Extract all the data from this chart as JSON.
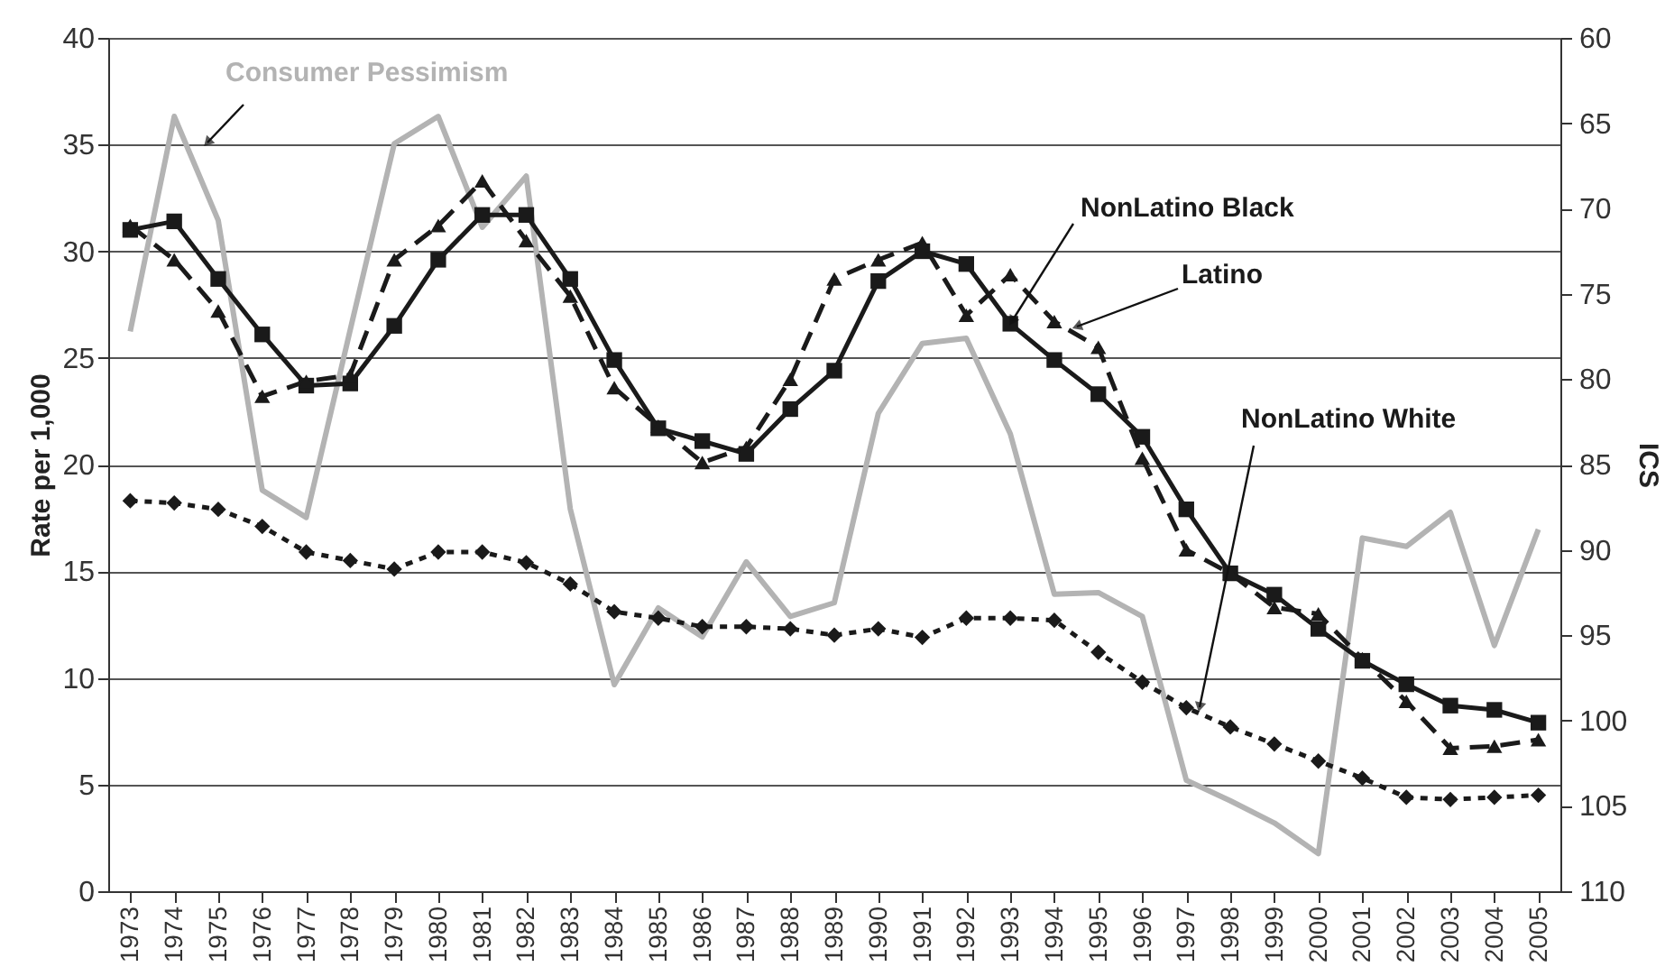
{
  "chart_data": {
    "type": "line",
    "ylabel": "Rate per 1,000",
    "y2label": "ICS",
    "categories": [
      "1973",
      "1974",
      "1975",
      "1976",
      "1977",
      "1978",
      "1979",
      "1980",
      "1981",
      "1982",
      "1983",
      "1984",
      "1985",
      "1986",
      "1987",
      "1988",
      "1989",
      "1990",
      "1991",
      "1992",
      "1993",
      "1994",
      "1995",
      "1996",
      "1997",
      "1998",
      "1999",
      "2000",
      "2001",
      "2002",
      "2003",
      "2004",
      "2005"
    ],
    "series": [
      {
        "name": "Consumer Pessimism",
        "color": "#b3b3b3",
        "axis": "y2",
        "marker": "none",
        "line_style": "solid",
        "values": [
          77.2,
          64.6,
          70.7,
          86.5,
          88.1,
          77.1,
          66.2,
          64.6,
          71.1,
          68.1,
          87.6,
          97.9,
          93.4,
          95.1,
          90.7,
          93.9,
          93.1,
          82.0,
          77.9,
          77.6,
          83.2,
          92.6,
          92.5,
          93.9,
          103.5,
          104.7,
          106.0,
          107.8,
          89.3,
          89.8,
          87.8,
          95.6,
          88.8
        ]
      },
      {
        "name": "NonLatino Black",
        "color": "#1a1a1a",
        "marker": "square",
        "line_style": "solid",
        "values": [
          31.0,
          31.4,
          28.7,
          26.1,
          23.7,
          23.8,
          26.5,
          29.6,
          31.7,
          31.7,
          28.7,
          24.9,
          21.7,
          21.1,
          20.5,
          22.6,
          24.4,
          28.6,
          30.0,
          29.4,
          26.6,
          24.9,
          23.3,
          21.3,
          17.9,
          14.9,
          13.9,
          12.3,
          10.8,
          9.7,
          8.7,
          8.5,
          7.9
        ]
      },
      {
        "name": "Latino",
        "color": "#1a1a1a",
        "marker": "triangle",
        "line_style": "dashed",
        "values": [
          31.2,
          29.6,
          27.2,
          23.2,
          23.9,
          24.2,
          29.6,
          31.2,
          33.3,
          30.5,
          27.9,
          23.6,
          21.8,
          20.1,
          20.8,
          24.0,
          28.7,
          29.6,
          30.4,
          27.0,
          28.9,
          26.7,
          25.5,
          20.3,
          16.0,
          14.9,
          13.3,
          13.0,
          10.9,
          8.9,
          6.7,
          6.8,
          7.1
        ]
      },
      {
        "name": "NonLatino White",
        "color": "#1a1a1a",
        "marker": "diamond",
        "line_style": "dotted",
        "values": [
          18.3,
          18.2,
          17.9,
          17.1,
          15.9,
          15.5,
          15.1,
          15.9,
          15.9,
          15.4,
          14.4,
          13.1,
          12.8,
          12.4,
          12.4,
          12.3,
          12.0,
          12.3,
          11.9,
          12.8,
          12.8,
          12.7,
          11.2,
          9.8,
          8.6,
          7.7,
          6.9,
          6.1,
          5.3,
          4.4,
          4.3,
          4.4,
          4.5
        ]
      }
    ],
    "ylim": [
      0,
      40
    ],
    "yticks": [
      0,
      5,
      10,
      15,
      20,
      25,
      30,
      35,
      40
    ],
    "y2lim": [
      110,
      60
    ],
    "y2ticks": [
      60,
      65,
      70,
      75,
      80,
      85,
      90,
      95,
      100,
      105,
      110
    ],
    "grid": "y",
    "legend": false
  }
}
